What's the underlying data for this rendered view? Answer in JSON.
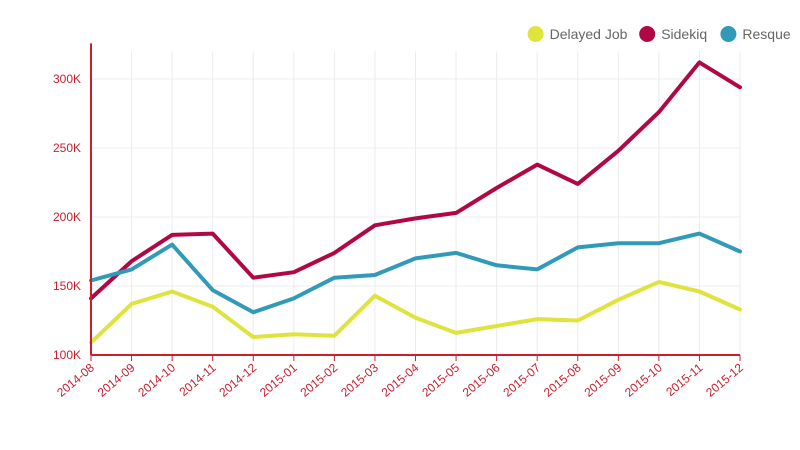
{
  "chart_data": {
    "type": "line",
    "title": "",
    "xlabel": "",
    "ylabel": "",
    "categories": [
      "2014-08",
      "2014-09",
      "2014-10",
      "2014-11",
      "2014-12",
      "2015-01",
      "2015-02",
      "2015-03",
      "2015-04",
      "2015-05",
      "2015-06",
      "2015-07",
      "2015-08",
      "2015-09",
      "2015-10",
      "2015-11",
      "2015-12"
    ],
    "y_ticks": [
      "100K",
      "150K",
      "200K",
      "250K",
      "300K"
    ],
    "ylim": [
      100000,
      320000
    ],
    "grid": true,
    "legend_position": "top-right",
    "series": [
      {
        "name": "Delayed Job",
        "color": "#dfe33d",
        "values": [
          109000,
          137000,
          146000,
          135000,
          113000,
          115000,
          114000,
          143000,
          127000,
          116000,
          121000,
          126000,
          125000,
          140000,
          153000,
          146000,
          133000
        ]
      },
      {
        "name": "Sidekiq",
        "color": "#b10845",
        "values": [
          141000,
          168000,
          187000,
          188000,
          156000,
          160000,
          174000,
          194000,
          199000,
          203000,
          221000,
          238000,
          224000,
          248000,
          276000,
          312000,
          294000
        ]
      },
      {
        "name": "Resque",
        "color": "#319ab8",
        "values": [
          154000,
          162000,
          180000,
          147000,
          131000,
          141000,
          156000,
          158000,
          170000,
          174000,
          165000,
          162000,
          178000,
          181000,
          181000,
          188000,
          175000
        ]
      }
    ]
  }
}
